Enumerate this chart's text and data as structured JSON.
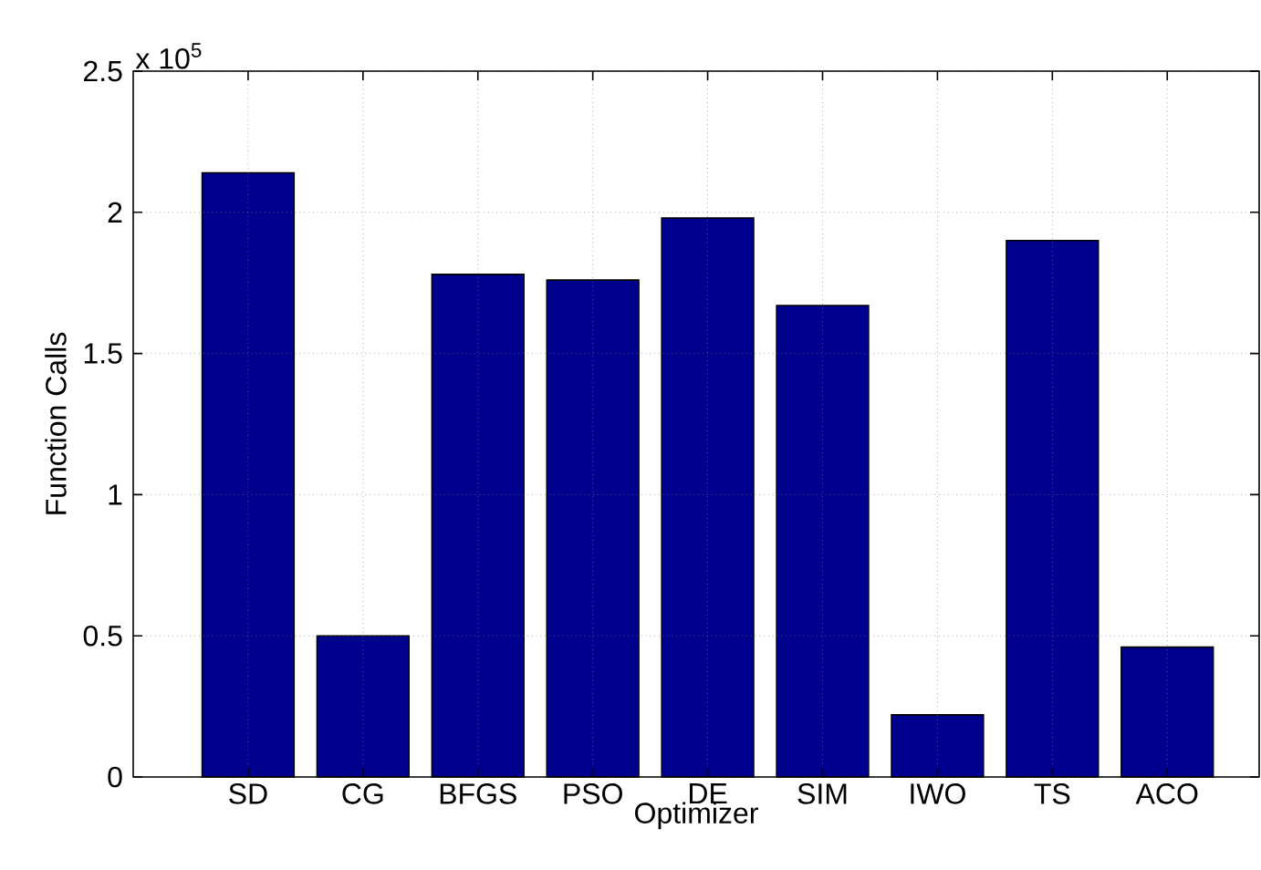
{
  "chart_data": {
    "type": "bar",
    "xlabel": "Optimizer",
    "ylabel": "Function Calls",
    "categories": [
      "SD",
      "CG",
      "BFGS",
      "PSO",
      "DE",
      "SIM",
      "IWO",
      "TS",
      "ACO"
    ],
    "values": [
      2.14,
      0.5,
      1.78,
      1.76,
      1.98,
      1.67,
      0.22,
      1.9,
      0.46
    ],
    "color": "#00008f",
    "grid": true,
    "ylim": [
      0,
      2.5
    ],
    "yticks": [
      0,
      0.5,
      1,
      1.5,
      2,
      2.5
    ],
    "annotations": [
      "x 10$^{5}$"
    ]
  }
}
